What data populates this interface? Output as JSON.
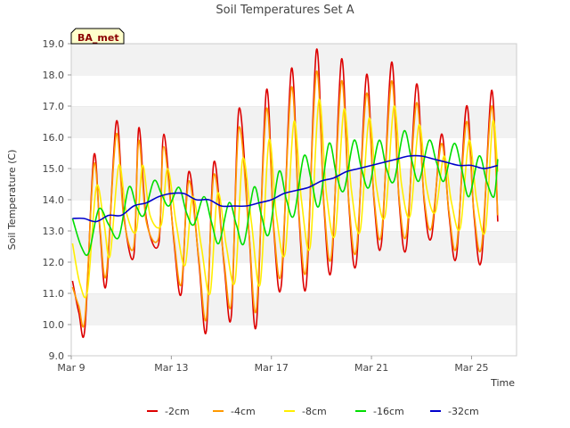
{
  "chart_data": {
    "type": "line",
    "title": "Soil Temperatures Set A",
    "xlabel": "Time",
    "ylabel": "Soil Temperature (C)",
    "badge": "BA_met",
    "xlim": [
      0,
      17.8
    ],
    "ylim": [
      9.0,
      19.0
    ],
    "grid": "horizontal bands",
    "legend_position": "bottom",
    "x_ticks": [
      {
        "x": 0,
        "label": "Mar 9"
      },
      {
        "x": 4,
        "label": "Mar 13"
      },
      {
        "x": 8,
        "label": "Mar 17"
      },
      {
        "x": 12,
        "label": "Mar 21"
      },
      {
        "x": 16,
        "label": "Mar 25"
      }
    ],
    "y_ticks": [
      9.0,
      10.0,
      11.0,
      12.0,
      13.0,
      14.0,
      15.0,
      16.0,
      17.0,
      18.0,
      19.0
    ],
    "x_unit_note": "days since Mar 9",
    "series": [
      {
        "name": "-2cm",
        "color": "#dd0000",
        "x": [
          0.05,
          0.3,
          0.55,
          0.9,
          1.15,
          1.4,
          1.8,
          2.1,
          2.5,
          2.7,
          3.0,
          3.5,
          3.7,
          4.1,
          4.4,
          4.7,
          5.1,
          5.4,
          5.7,
          6.1,
          6.4,
          6.7,
          7.1,
          7.4,
          7.8,
          8.1,
          8.4,
          8.8,
          9.1,
          9.4,
          9.8,
          10.1,
          10.4,
          10.8,
          11.1,
          11.4,
          11.8,
          12.1,
          12.4,
          12.8,
          13.1,
          13.4,
          13.8,
          14.1,
          14.4,
          14.8,
          15.1,
          15.4,
          15.8,
          16.1,
          16.4,
          16.8,
          17.05
        ],
        "y": [
          11.4,
          10.4,
          9.9,
          15.4,
          13.0,
          11.3,
          16.5,
          13.5,
          12.2,
          16.3,
          13.4,
          12.6,
          16.1,
          12.7,
          11.0,
          14.9,
          12.0,
          9.8,
          15.2,
          12.0,
          10.3,
          16.9,
          13.0,
          10.0,
          17.5,
          13.0,
          11.3,
          18.2,
          13.5,
          11.3,
          18.8,
          13.8,
          11.8,
          18.5,
          13.8,
          12.0,
          18.0,
          14.0,
          12.6,
          18.4,
          14.0,
          12.5,
          17.7,
          14.0,
          12.8,
          16.1,
          13.5,
          12.2,
          17.0,
          13.5,
          12.1,
          17.5,
          13.3
        ]
      },
      {
        "name": "-4cm",
        "color": "#ff9900",
        "x": [
          0.05,
          0.3,
          0.55,
          0.9,
          1.15,
          1.4,
          1.8,
          2.1,
          2.5,
          2.7,
          3.0,
          3.5,
          3.7,
          4.1,
          4.4,
          4.7,
          5.1,
          5.4,
          5.7,
          6.1,
          6.4,
          6.7,
          7.1,
          7.4,
          7.8,
          8.1,
          8.4,
          8.8,
          9.1,
          9.4,
          9.8,
          10.1,
          10.4,
          10.8,
          11.1,
          11.4,
          11.8,
          12.1,
          12.4,
          12.8,
          13.1,
          13.4,
          13.8,
          14.1,
          14.4,
          14.8,
          15.1,
          15.4,
          15.8,
          16.1,
          16.4,
          16.8,
          17.05
        ],
        "y": [
          11.2,
          10.6,
          10.2,
          15.1,
          13.1,
          11.6,
          16.1,
          13.4,
          12.5,
          15.9,
          13.3,
          12.8,
          15.7,
          12.8,
          11.3,
          14.6,
          12.1,
          10.2,
          14.8,
          12.1,
          10.7,
          16.3,
          13.0,
          10.5,
          16.9,
          13.1,
          11.7,
          17.6,
          13.6,
          11.8,
          18.1,
          13.9,
          12.2,
          17.8,
          13.9,
          12.4,
          17.4,
          14.1,
          12.9,
          17.8,
          14.1,
          12.9,
          17.1,
          14.1,
          13.1,
          15.8,
          13.6,
          12.5,
          16.5,
          13.6,
          12.5,
          17.0,
          13.5
        ]
      },
      {
        "name": "-8cm",
        "color": "#ffee00",
        "x": [
          0.05,
          0.35,
          0.65,
          1.0,
          1.3,
          1.55,
          1.9,
          2.2,
          2.6,
          2.85,
          3.15,
          3.6,
          3.85,
          4.2,
          4.55,
          4.85,
          5.2,
          5.55,
          5.85,
          6.2,
          6.55,
          6.85,
          7.2,
          7.55,
          7.9,
          8.2,
          8.55,
          8.9,
          9.2,
          9.55,
          9.9,
          10.2,
          10.55,
          10.9,
          11.2,
          11.55,
          11.9,
          12.2,
          12.55,
          12.9,
          13.2,
          13.55,
          13.9,
          14.2,
          14.55,
          14.9,
          15.2,
          15.55,
          15.9,
          16.2,
          16.55,
          16.85,
          17.05
        ],
        "y": [
          12.6,
          11.3,
          11.1,
          14.4,
          13.3,
          12.2,
          15.1,
          13.6,
          13.0,
          15.1,
          13.5,
          13.2,
          15.0,
          13.2,
          11.9,
          14.1,
          12.5,
          11.0,
          14.2,
          12.5,
          11.4,
          15.3,
          13.3,
          11.3,
          15.9,
          13.5,
          12.3,
          16.5,
          14.0,
          12.5,
          17.2,
          14.2,
          12.9,
          16.9,
          14.3,
          13.0,
          16.6,
          14.4,
          13.5,
          17.0,
          14.5,
          13.5,
          16.4,
          14.4,
          13.6,
          15.4,
          13.9,
          13.1,
          15.9,
          14.0,
          13.0,
          16.5,
          14.9
        ]
      },
      {
        "name": "-16cm",
        "color": "#00dd00",
        "x": [
          0.05,
          0.4,
          0.7,
          1.1,
          1.5,
          1.9,
          2.3,
          2.6,
          2.9,
          3.3,
          3.6,
          3.9,
          4.3,
          4.6,
          4.9,
          5.3,
          5.6,
          5.9,
          6.3,
          6.6,
          6.9,
          7.3,
          7.6,
          7.9,
          8.3,
          8.6,
          8.9,
          9.3,
          9.6,
          9.9,
          10.3,
          10.6,
          10.9,
          11.3,
          11.6,
          11.9,
          12.3,
          12.6,
          12.9,
          13.3,
          13.6,
          13.9,
          14.3,
          14.6,
          14.9,
          15.3,
          15.6,
          15.9,
          16.3,
          16.6,
          16.9,
          17.05
        ],
        "y": [
          13.4,
          12.5,
          12.3,
          13.7,
          13.2,
          12.8,
          14.4,
          13.8,
          13.5,
          14.6,
          14.2,
          13.8,
          14.4,
          13.6,
          13.2,
          14.1,
          13.3,
          12.6,
          13.9,
          13.2,
          12.6,
          14.4,
          13.5,
          12.9,
          14.9,
          14.0,
          13.5,
          15.4,
          14.6,
          13.8,
          15.8,
          14.8,
          14.3,
          15.9,
          15.0,
          14.4,
          15.9,
          15.0,
          14.6,
          16.2,
          15.3,
          14.6,
          15.9,
          15.2,
          14.6,
          15.8,
          15.0,
          14.1,
          15.4,
          14.6,
          14.1,
          15.3
        ]
      },
      {
        "name": "-32cm",
        "color": "#0000cc",
        "x": [
          0.05,
          0.5,
          1.0,
          1.5,
          2.0,
          2.5,
          3.0,
          3.5,
          4.0,
          4.5,
          5.0,
          5.5,
          6.0,
          6.5,
          7.0,
          7.5,
          8.0,
          8.5,
          9.0,
          9.5,
          10.0,
          10.5,
          11.0,
          11.5,
          12.0,
          12.5,
          13.0,
          13.5,
          14.0,
          14.5,
          15.0,
          15.5,
          16.0,
          16.5,
          17.05
        ],
        "y": [
          13.4,
          13.4,
          13.3,
          13.5,
          13.5,
          13.8,
          13.9,
          14.1,
          14.2,
          14.2,
          14.0,
          14.0,
          13.8,
          13.8,
          13.8,
          13.9,
          14.0,
          14.2,
          14.3,
          14.4,
          14.6,
          14.7,
          14.9,
          15.0,
          15.1,
          15.2,
          15.3,
          15.4,
          15.4,
          15.3,
          15.2,
          15.1,
          15.1,
          15.0,
          15.1
        ]
      }
    ]
  }
}
